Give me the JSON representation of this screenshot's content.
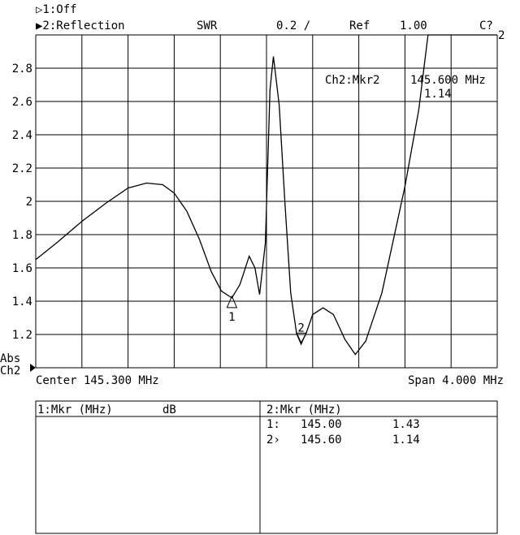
{
  "header": {
    "ch1": "▷1:Off",
    "ch2": "▶2:Reflection",
    "format": "SWR",
    "scale": "0.2 /",
    "ref_label": "Ref",
    "ref_value": "1.00",
    "cal_status": "C?",
    "channel_indicator": "2"
  },
  "marker_readout": {
    "label": "Ch2:Mkr2",
    "freq": "145.600 MHz",
    "value": "1.14"
  },
  "side": {
    "abs": "Abs",
    "ch": "Ch2"
  },
  "footer": {
    "center": "Center 145.300 MHz",
    "span": "Span 4.000 MHz"
  },
  "chart_data": {
    "type": "line",
    "title": "",
    "xlabel": "",
    "ylabel": "SWR",
    "xlim": [
      143.3,
      147.3
    ],
    "ylim": [
      1.0,
      3.0
    ],
    "x_divisions": 10,
    "y_divisions": 10,
    "grid": true,
    "y_ticks": [
      "1.2",
      "1.4",
      "1.6",
      "1.8",
      "2",
      "2.2",
      "2.4",
      "2.6",
      "2.8"
    ],
    "x": [
      143.3,
      143.48,
      143.7,
      143.91,
      144.1,
      144.26,
      144.4,
      144.5,
      144.61,
      144.72,
      144.82,
      144.91,
      145.0,
      145.07,
      145.15,
      145.2,
      145.24,
      145.29,
      145.33,
      145.36,
      145.41,
      145.46,
      145.51,
      145.56,
      145.6,
      145.64,
      145.7,
      145.79,
      145.88,
      145.98,
      146.07,
      146.16,
      146.3,
      146.5,
      146.62,
      146.7,
      147.3
    ],
    "y": [
      1.65,
      1.75,
      1.88,
      1.99,
      2.08,
      2.11,
      2.1,
      2.05,
      1.94,
      1.77,
      1.58,
      1.46,
      1.42,
      1.5,
      1.67,
      1.6,
      1.44,
      1.75,
      2.67,
      2.87,
      2.58,
      1.99,
      1.45,
      1.21,
      1.15,
      1.2,
      1.32,
      1.36,
      1.32,
      1.17,
      1.08,
      1.16,
      1.45,
      2.09,
      2.55,
      3.0,
      3.0
    ],
    "markers": [
      {
        "label": "1",
        "freq": 145.0,
        "value": 1.43
      },
      {
        "label": "2",
        "freq": 145.6,
        "value": 1.14
      }
    ]
  },
  "table": {
    "left_header": "1:Mkr (MHz)",
    "left_unit": "dB",
    "right_header": "2:Mkr (MHz)",
    "rows": [
      {
        "id": "1:",
        "freq": "145.00",
        "value": "1.43"
      },
      {
        "id": "2›",
        "freq": "145.60",
        "value": "1.14"
      }
    ]
  }
}
